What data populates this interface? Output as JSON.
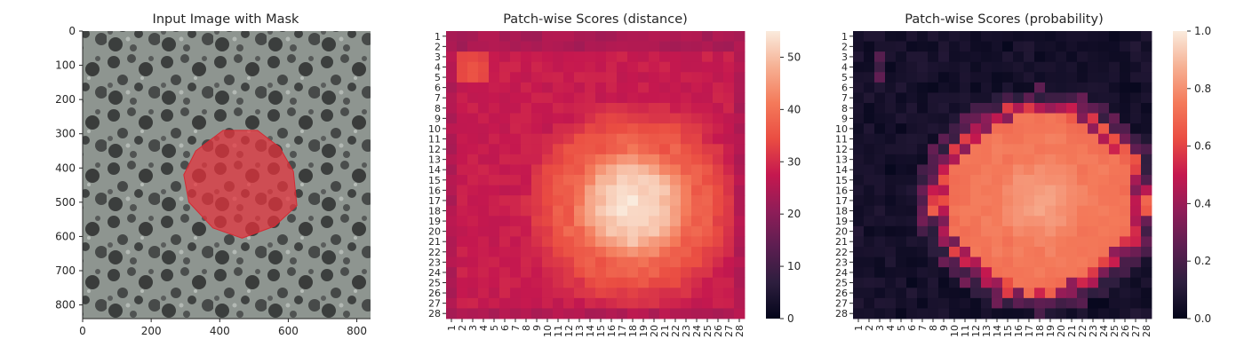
{
  "chart_data": [
    {
      "type": "image",
      "title": "Input Image with Mask",
      "xticks": [
        0,
        200,
        400,
        600,
        800
      ],
      "yticks": [
        0,
        100,
        200,
        300,
        400,
        500,
        600,
        700,
        800
      ],
      "xlim": [
        0,
        840
      ],
      "ylim": [
        840,
        0
      ],
      "mask": {
        "color": "#e8323c",
        "center": [
          465,
          455
        ],
        "vertices": [
          [
            330,
            350
          ],
          [
            410,
            290
          ],
          [
            510,
            290
          ],
          [
            575,
            340
          ],
          [
            615,
            410
          ],
          [
            625,
            510
          ],
          [
            560,
            570
          ],
          [
            465,
            605
          ],
          [
            380,
            575
          ],
          [
            310,
            500
          ],
          [
            295,
            420
          ]
        ]
      }
    },
    {
      "type": "heatmap",
      "title": "Patch-wise Scores (distance)",
      "rows": 28,
      "cols": 28,
      "ticklabels": [
        "1",
        "2",
        "3",
        "4",
        "5",
        "6",
        "7",
        "8",
        "9",
        "10",
        "11",
        "12",
        "13",
        "14",
        "15",
        "16",
        "17",
        "18",
        "19",
        "20",
        "21",
        "22",
        "23",
        "24",
        "25",
        "26",
        "27",
        "28"
      ],
      "colorbar": {
        "min": 0,
        "max": 55,
        "ticks": [
          0,
          10,
          20,
          30,
          40,
          50
        ]
      },
      "colormap": "rocket",
      "field": {
        "center_row": 17.5,
        "center_col": 18.0,
        "peak": 55,
        "inner_radius": 3.5,
        "ring_radius": 6.5,
        "ring_value": 38,
        "border_value": 28,
        "border_low": 25,
        "bright_patch": {
          "row": 4,
          "col": 3,
          "value": 36
        }
      }
    },
    {
      "type": "heatmap",
      "title": "Patch-wise Scores (probability)",
      "rows": 28,
      "cols": 28,
      "ticklabels": [
        "1",
        "2",
        "3",
        "4",
        "5",
        "6",
        "7",
        "8",
        "9",
        "10",
        "11",
        "12",
        "13",
        "14",
        "15",
        "16",
        "17",
        "18",
        "19",
        "20",
        "21",
        "22",
        "23",
        "24",
        "25",
        "26",
        "27",
        "28"
      ],
      "colorbar": {
        "min": 0.0,
        "max": 1.0,
        "ticks": [
          0.0,
          0.2,
          0.4,
          0.6,
          0.8,
          1.0
        ],
        "ticklabels": [
          "0.0",
          "0.2",
          "0.4",
          "0.6",
          "0.8",
          "1.0"
        ]
      },
      "colormap": "rocket",
      "field": {
        "center_row": 17.0,
        "center_col": 18.0,
        "plateau": 0.72,
        "peak": 0.86,
        "edge_radius": 10.5,
        "outside_value": 0.03,
        "corner_patch": {
          "row": 4,
          "col": 3,
          "value": 0.15
        }
      }
    }
  ]
}
